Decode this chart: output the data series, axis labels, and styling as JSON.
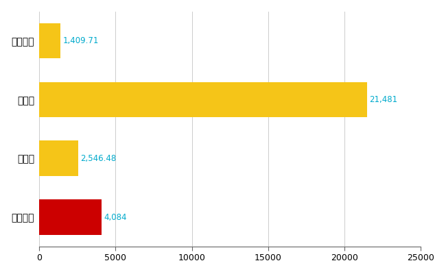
{
  "categories": [
    "東広島市",
    "県平均",
    "県最大",
    "全国平均"
  ],
  "values": [
    4084,
    2546.48,
    21481,
    1409.71
  ],
  "labels": [
    "4,084",
    "2,546.48",
    "21,481",
    "1,409.71"
  ],
  "bar_colors": [
    "#cc0000",
    "#f5c518",
    "#f5c518",
    "#f5c518"
  ],
  "xlim": [
    0,
    25000
  ],
  "xticks": [
    0,
    5000,
    10000,
    15000,
    20000,
    25000
  ],
  "xtick_labels": [
    "0",
    "5000",
    "10000",
    "15000",
    "20000",
    "25000"
  ],
  "label_color": "#00aacc",
  "grid_color": "#cccccc",
  "background_color": "#ffffff",
  "label_fontsize": 8.5,
  "tick_fontsize": 9,
  "ytick_fontsize": 10,
  "bar_height": 0.6
}
